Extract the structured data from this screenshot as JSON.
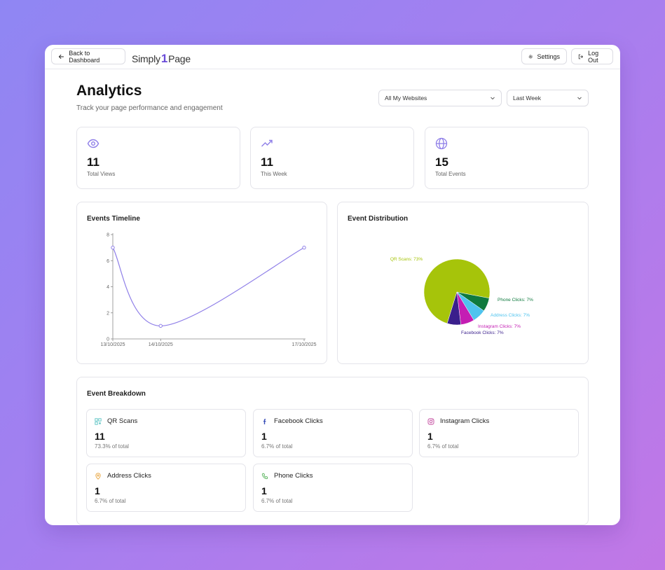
{
  "topbar": {
    "back_label": "Back to Dashboard",
    "logo_left": "Simply",
    "logo_mark": "1",
    "logo_right": "Page",
    "settings_label": "Settings",
    "logout_label": "Log Out"
  },
  "header": {
    "title": "Analytics",
    "subtitle": "Track your page performance and engagement",
    "website_select": "All My Websites",
    "period_select": "Last Week"
  },
  "stats": [
    {
      "icon": "eye-icon",
      "value": "11",
      "label": "Total Views"
    },
    {
      "icon": "trending-up-icon",
      "value": "11",
      "label": "This Week"
    },
    {
      "icon": "globe-icon",
      "value": "15",
      "label": "Total Events"
    }
  ],
  "timeline": {
    "title": "Events Timeline"
  },
  "distribution": {
    "title": "Event Distribution"
  },
  "chart_data": [
    {
      "type": "line",
      "title": "Events Timeline",
      "x": [
        "13/10/2025",
        "14/10/2025",
        "17/10/2025"
      ],
      "values": [
        7,
        1,
        7
      ],
      "ylim": [
        0,
        8
      ],
      "yticks": [
        0,
        2,
        4,
        6,
        8
      ],
      "color": "#8f7fe8"
    },
    {
      "type": "pie",
      "title": "Event Distribution",
      "slices": [
        {
          "label": "QR Scans: 73%",
          "value": 73.3,
          "color": "#a6c40a"
        },
        {
          "label": "Phone Clicks: 7%",
          "value": 6.7,
          "color": "#0f7a3e"
        },
        {
          "label": "Address Clicks: 7%",
          "value": 6.7,
          "color": "#4ec3ee"
        },
        {
          "label": "Instagram Clicks: 7%",
          "value": 6.7,
          "color": "#c41db3"
        },
        {
          "label": "Facebook Clicks: 7%",
          "value": 6.7,
          "color": "#3a1f8c"
        }
      ]
    }
  ],
  "breakdown": {
    "title": "Event Breakdown",
    "items": [
      {
        "icon": "qr-code-icon",
        "label": "QR Scans",
        "value": "11",
        "pct": "73.3% of total",
        "color": "#5bc3c3"
      },
      {
        "icon": "facebook-icon",
        "label": "Facebook Clicks",
        "value": "1",
        "pct": "6.7% of total",
        "color": "#3a4fb8"
      },
      {
        "icon": "instagram-icon",
        "label": "Instagram Clicks",
        "value": "1",
        "pct": "6.7% of total",
        "color": "#c0409a"
      },
      {
        "icon": "map-pin-icon",
        "label": "Address Clicks",
        "value": "1",
        "pct": "6.7% of total",
        "color": "#e8a33a"
      },
      {
        "icon": "phone-icon",
        "label": "Phone Clicks",
        "value": "1",
        "pct": "6.7% of total",
        "color": "#4caf50"
      }
    ]
  }
}
